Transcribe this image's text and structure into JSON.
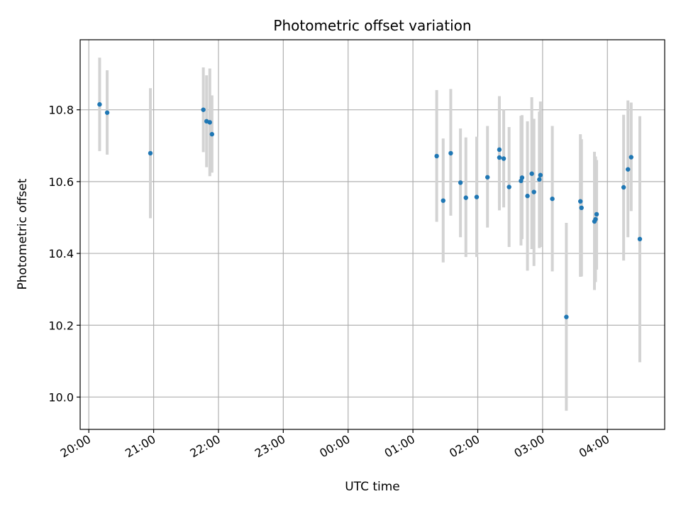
{
  "chart_data": {
    "type": "scatter",
    "title": "Photometric offset variation",
    "xlabel": "UTC time",
    "ylabel": "Photometric offset",
    "grid": true,
    "colors": {
      "points": "#1f77b4",
      "errorbars": "#d3d3d3",
      "grid": "#b0b0b0"
    },
    "xlim": [
      "2019-01-01T19:52",
      "2019-01-02T04:53"
    ],
    "ylim": [
      9.91,
      10.995
    ],
    "x_ticks": [
      {
        "value": "2019-01-01T20:00",
        "label": "20:00"
      },
      {
        "value": "2019-01-01T21:00",
        "label": "21:00"
      },
      {
        "value": "2019-01-01T22:00",
        "label": "22:00"
      },
      {
        "value": "2019-01-01T23:00",
        "label": "23:00"
      },
      {
        "value": "2019-01-02T00:00",
        "label": "00:00"
      },
      {
        "value": "2019-01-02T01:00",
        "label": "01:00"
      },
      {
        "value": "2019-01-02T02:00",
        "label": "02:00"
      },
      {
        "value": "2019-01-02T03:00",
        "label": "03:00"
      },
      {
        "value": "2019-01-02T04:00",
        "label": "04:00"
      }
    ],
    "y_ticks": [
      {
        "value": 10.0,
        "label": "10.0"
      },
      {
        "value": 10.2,
        "label": "10.2"
      },
      {
        "value": 10.4,
        "label": "10.4"
      },
      {
        "value": 10.6,
        "label": "10.6"
      },
      {
        "value": 10.8,
        "label": "10.8"
      }
    ],
    "points": [
      {
        "x": "2019-01-01T20:10",
        "y": 10.815,
        "lo": 10.685,
        "hi": 10.945
      },
      {
        "x": "2019-01-01T20:17",
        "y": 10.792,
        "lo": 10.675,
        "hi": 10.91
      },
      {
        "x": "2019-01-01T20:57",
        "y": 10.679,
        "lo": 10.498,
        "hi": 10.86
      },
      {
        "x": "2019-01-01T21:46",
        "y": 10.8,
        "lo": 10.682,
        "hi": 10.918
      },
      {
        "x": "2019-01-01T21:49",
        "y": 10.768,
        "lo": 10.64,
        "hi": 10.896
      },
      {
        "x": "2019-01-01T21:52",
        "y": 10.765,
        "lo": 10.615,
        "hi": 10.915
      },
      {
        "x": "2019-01-01T21:54",
        "y": 10.732,
        "lo": 10.625,
        "hi": 10.84
      },
      {
        "x": "2019-01-02T01:22",
        "y": 10.671,
        "lo": 10.488,
        "hi": 10.855
      },
      {
        "x": "2019-01-02T01:28",
        "y": 10.547,
        "lo": 10.375,
        "hi": 10.72
      },
      {
        "x": "2019-01-02T01:35",
        "y": 10.679,
        "lo": 10.505,
        "hi": 10.858
      },
      {
        "x": "2019-01-02T01:44",
        "y": 10.597,
        "lo": 10.445,
        "hi": 10.748
      },
      {
        "x": "2019-01-02T01:49",
        "y": 10.555,
        "lo": 10.39,
        "hi": 10.723
      },
      {
        "x": "2019-01-02T01:59",
        "y": 10.557,
        "lo": 10.39,
        "hi": 10.725
      },
      {
        "x": "2019-01-02T02:09",
        "y": 10.612,
        "lo": 10.472,
        "hi": 10.755
      },
      {
        "x": "2019-01-02T02:20",
        "y": 10.689,
        "lo": 10.54,
        "hi": 10.838
      },
      {
        "x": "2019-01-02T02:20",
        "y": 10.667,
        "lo": 10.52,
        "hi": 10.822
      },
      {
        "x": "2019-01-02T02:24",
        "y": 10.664,
        "lo": 10.528,
        "hi": 10.8
      },
      {
        "x": "2019-01-02T02:29",
        "y": 10.585,
        "lo": 10.418,
        "hi": 10.752
      },
      {
        "x": "2019-01-02T02:40",
        "y": 10.602,
        "lo": 10.422,
        "hi": 10.783
      },
      {
        "x": "2019-01-02T02:41",
        "y": 10.611,
        "lo": 10.44,
        "hi": 10.785
      },
      {
        "x": "2019-01-02T02:46",
        "y": 10.56,
        "lo": 10.352,
        "hi": 10.768
      },
      {
        "x": "2019-01-02T02:50",
        "y": 10.622,
        "lo": 10.412,
        "hi": 10.835
      },
      {
        "x": "2019-01-02T02:52",
        "y": 10.571,
        "lo": 10.365,
        "hi": 10.775
      },
      {
        "x": "2019-01-02T02:57",
        "y": 10.606,
        "lo": 10.415,
        "hi": 10.795
      },
      {
        "x": "2019-01-02T02:58",
        "y": 10.618,
        "lo": 10.418,
        "hi": 10.823
      },
      {
        "x": "2019-01-02T03:09",
        "y": 10.552,
        "lo": 10.35,
        "hi": 10.755
      },
      {
        "x": "2019-01-02T03:22",
        "y": 10.223,
        "lo": 9.962,
        "hi": 10.485
      },
      {
        "x": "2019-01-02T03:35",
        "y": 10.545,
        "lo": 10.335,
        "hi": 10.732
      },
      {
        "x": "2019-01-02T03:36",
        "y": 10.527,
        "lo": 10.336,
        "hi": 10.718
      },
      {
        "x": "2019-01-02T03:48",
        "y": 10.489,
        "lo": 10.298,
        "hi": 10.683
      },
      {
        "x": "2019-01-02T03:49",
        "y": 10.495,
        "lo": 10.32,
        "hi": 10.67
      },
      {
        "x": "2019-01-02T03:50",
        "y": 10.509,
        "lo": 10.355,
        "hi": 10.66
      },
      {
        "x": "2019-01-02T04:15",
        "y": 10.584,
        "lo": 10.38,
        "hi": 10.786
      },
      {
        "x": "2019-01-02T04:19",
        "y": 10.634,
        "lo": 10.445,
        "hi": 10.826
      },
      {
        "x": "2019-01-02T04:22",
        "y": 10.668,
        "lo": 10.518,
        "hi": 10.82
      },
      {
        "x": "2019-01-02T04:30",
        "y": 10.44,
        "lo": 10.097,
        "hi": 10.782
      }
    ]
  }
}
